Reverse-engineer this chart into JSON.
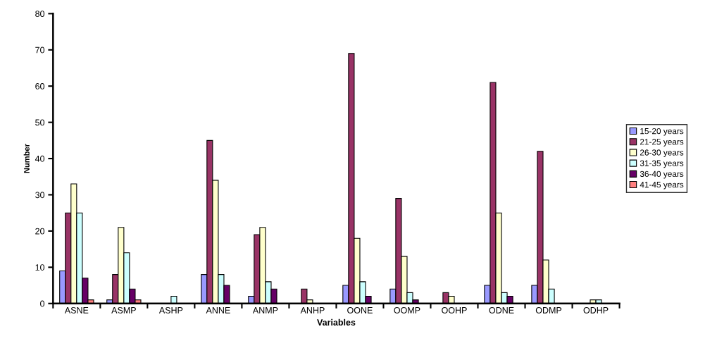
{
  "chart_data": {
    "type": "bar",
    "xlabel": "Variables",
    "ylabel": "Number",
    "categories": [
      "ASNE",
      "ASMP",
      "ASHP",
      "ANNE",
      "ANMP",
      "ANHP",
      "OONE",
      "OOMP",
      "OOHP",
      "ODNE",
      "ODMP",
      "ODHP"
    ],
    "series": [
      {
        "name": "15-20 years",
        "color": "#9999ff",
        "values": [
          9,
          1,
          null,
          8,
          2,
          null,
          5,
          4,
          null,
          5,
          5,
          null
        ]
      },
      {
        "name": "21-25 years",
        "color": "#993366",
        "values": [
          25,
          8,
          null,
          45,
          19,
          4,
          69,
          29,
          3,
          61,
          42,
          null
        ]
      },
      {
        "name": "26-30 years",
        "color": "#ffffcc",
        "values": [
          33,
          21,
          null,
          34,
          21,
          1,
          18,
          13,
          2,
          25,
          12,
          1
        ]
      },
      {
        "name": "31-35 years",
        "color": "#ccffff",
        "values": [
          25,
          14,
          2,
          8,
          6,
          null,
          6,
          3,
          null,
          3,
          4,
          1
        ]
      },
      {
        "name": "36-40 years",
        "color": "#660066",
        "values": [
          7,
          4,
          null,
          5,
          4,
          null,
          2,
          1,
          null,
          2,
          null,
          null
        ]
      },
      {
        "name": "41-45 years",
        "color": "#ff8080",
        "values": [
          1,
          1,
          null,
          null,
          null,
          null,
          null,
          null,
          null,
          null,
          null,
          null
        ]
      }
    ],
    "ylim": [
      0,
      80
    ],
    "yticks": [
      0,
      10,
      20,
      30,
      40,
      50,
      60,
      70,
      80
    ],
    "grid": false,
    "legend": "right"
  }
}
